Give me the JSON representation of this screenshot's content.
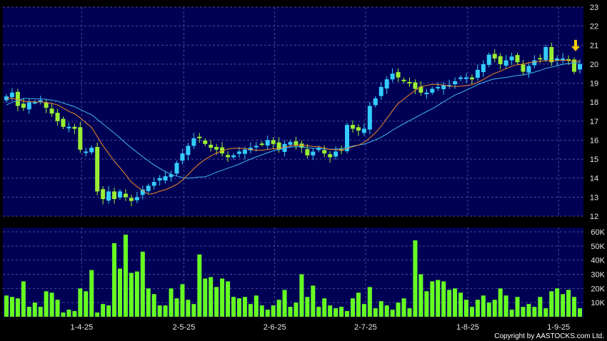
{
  "copyright": "Copyright by AASTOCKS.com Ltd.",
  "colors": {
    "background": "#000000",
    "panel": "#000055",
    "grid": "#4a4a9a",
    "candle_up": "#33ccff",
    "candle_down": "#99ee33",
    "ma_short": "#f08a24",
    "ma_long": "#3fb8ec",
    "volume": "#66ff22",
    "arrow": "#ffcc00"
  },
  "chart_data": [
    {
      "type": "candlestick",
      "title": "",
      "xlabel": "",
      "ylabel": "",
      "x_ticks": [
        "1-4-25",
        "2-5-25",
        "2-6-25",
        "2-7-25",
        "1-8-25",
        "1-9-25"
      ],
      "y_ticks": [
        12,
        13,
        14,
        15,
        16,
        17,
        18,
        19,
        20,
        21,
        22,
        23
      ],
      "ylim": [
        12,
        23
      ],
      "grid": true,
      "closes": [
        18.3,
        18.5,
        17.8,
        17.7,
        18.0,
        18.0,
        18.1,
        17.7,
        17.4,
        17.0,
        16.7,
        16.7,
        16.6,
        15.5,
        15.4,
        15.6,
        13.3,
        12.9,
        13.3,
        12.9,
        13.3,
        13.0,
        12.8,
        13.0,
        13.4,
        13.6,
        13.8,
        14.0,
        14.1,
        14.2,
        14.8,
        15.3,
        15.7,
        16.1,
        16.1,
        15.8,
        15.6,
        15.5,
        15.3,
        15.1,
        15.2,
        15.4,
        15.5,
        15.6,
        15.7,
        15.8,
        16.0,
        15.8,
        15.5,
        15.8,
        15.9,
        15.7,
        15.6,
        15.2,
        15.4,
        15.6,
        15.3,
        15.1,
        15.4,
        15.5,
        16.8,
        16.6,
        16.5,
        16.6,
        17.8,
        18.2,
        18.8,
        19.2,
        19.5,
        19.3,
        19.1,
        19.0,
        18.7,
        18.5,
        18.5,
        18.7,
        18.8,
        18.9,
        18.9,
        19.1,
        19.3,
        19.3,
        19.2,
        19.7,
        20.0,
        20.5,
        20.3,
        20.0,
        20.2,
        20.4,
        20.1,
        19.6,
        19.9,
        20.2,
        20.3,
        20.9,
        20.1,
        20.3,
        20.3,
        20.2,
        19.6,
        20.0
      ],
      "series": [
        {
          "name": "",
          "kind": "moving_average_short"
        },
        {
          "name": "",
          "kind": "moving_average_long"
        }
      ]
    },
    {
      "type": "bar",
      "title": "",
      "xlabel": "",
      "ylabel": "",
      "y_ticks": [
        "10K",
        "20K",
        "30K",
        "40K",
        "50K",
        "60K"
      ],
      "ylim": [
        0,
        60000
      ],
      "values": [
        15000,
        14000,
        13000,
        25000,
        7000,
        10000,
        7000,
        18000,
        17000,
        12000,
        3000,
        5000,
        4000,
        20000,
        18000,
        33000,
        3000,
        9000,
        8000,
        52000,
        34000,
        58000,
        31000,
        32000,
        46000,
        20000,
        16000,
        8000,
        8000,
        20000,
        13000,
        23000,
        12000,
        9000,
        44000,
        27000,
        28000,
        21000,
        27000,
        25000,
        14000,
        13000,
        14000,
        9000,
        15000,
        8000,
        5000,
        8000,
        12000,
        19000,
        7000,
        10000,
        30000,
        14000,
        22000,
        7000,
        13000,
        8000,
        6000,
        7000,
        4000,
        13000,
        17000,
        9000,
        21000,
        6000,
        11000,
        8000,
        5000,
        10000,
        13000,
        6000,
        54000,
        30000,
        18000,
        25000,
        26000,
        25000,
        19000,
        20000,
        17000,
        12000,
        7000,
        12000,
        15000,
        10000,
        12000,
        20000,
        15000,
        5000,
        14000,
        7000,
        9000,
        7000,
        14000,
        6000,
        18000,
        20000,
        16000,
        19000,
        14000,
        6000
      ]
    }
  ]
}
